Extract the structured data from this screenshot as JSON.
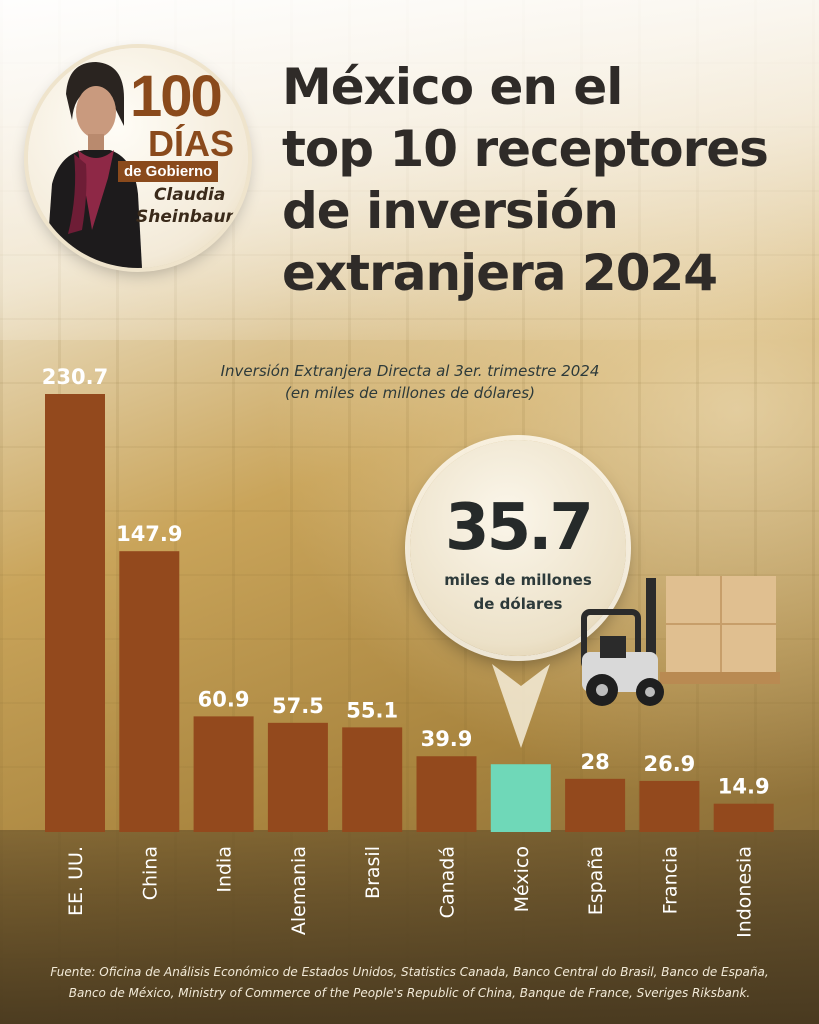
{
  "badge": {
    "number": "100",
    "dias": "DÍAS",
    "gobierno": "de Gobierno",
    "name_line1": "Claudia",
    "name_line2": "Sheinbaum"
  },
  "title_lines": [
    "México en el",
    "top 10 receptores",
    "de inversión",
    "extranjera 2024"
  ],
  "highlight": {
    "value": "35.7",
    "unit_line1": "miles de millones",
    "unit_line2": "de dólares"
  },
  "colors": {
    "bar": "#93491d",
    "bar_highlight": "#6fd8b8",
    "label_light": "#ffffff"
  },
  "chart_data": {
    "type": "bar",
    "title": "Inversión Extranjera Directa al 3er. trimestre 2024",
    "subtitle": "(en miles de millones de dólares)",
    "categories": [
      "EE. UU.",
      "China",
      "India",
      "Alemania",
      "Brasil",
      "Canadá",
      "México",
      "España",
      "Francia",
      "Indonesia"
    ],
    "values": [
      230.7,
      147.9,
      60.9,
      57.5,
      55.1,
      39.9,
      35.7,
      28,
      26.9,
      14.9
    ],
    "value_labels": [
      "230.7",
      "147.9",
      "60.9",
      "57.5",
      "55.1",
      "39.9",
      "",
      "28",
      "26.9",
      "14.9"
    ],
    "highlight_category": "México",
    "ylim": [
      0,
      230.7
    ],
    "xlabel": "",
    "ylabel": "",
    "grid": false,
    "legend": "none"
  },
  "source": {
    "line1": "Fuente: Oficina de Análisis Económico de Estados Unidos, Statistics Canada, Banco Central do Brasil, Banco de España,",
    "line2": "Banco de México, Ministry of Commerce of the People's Republic of China, Banque de France, Sveriges Riksbank."
  }
}
